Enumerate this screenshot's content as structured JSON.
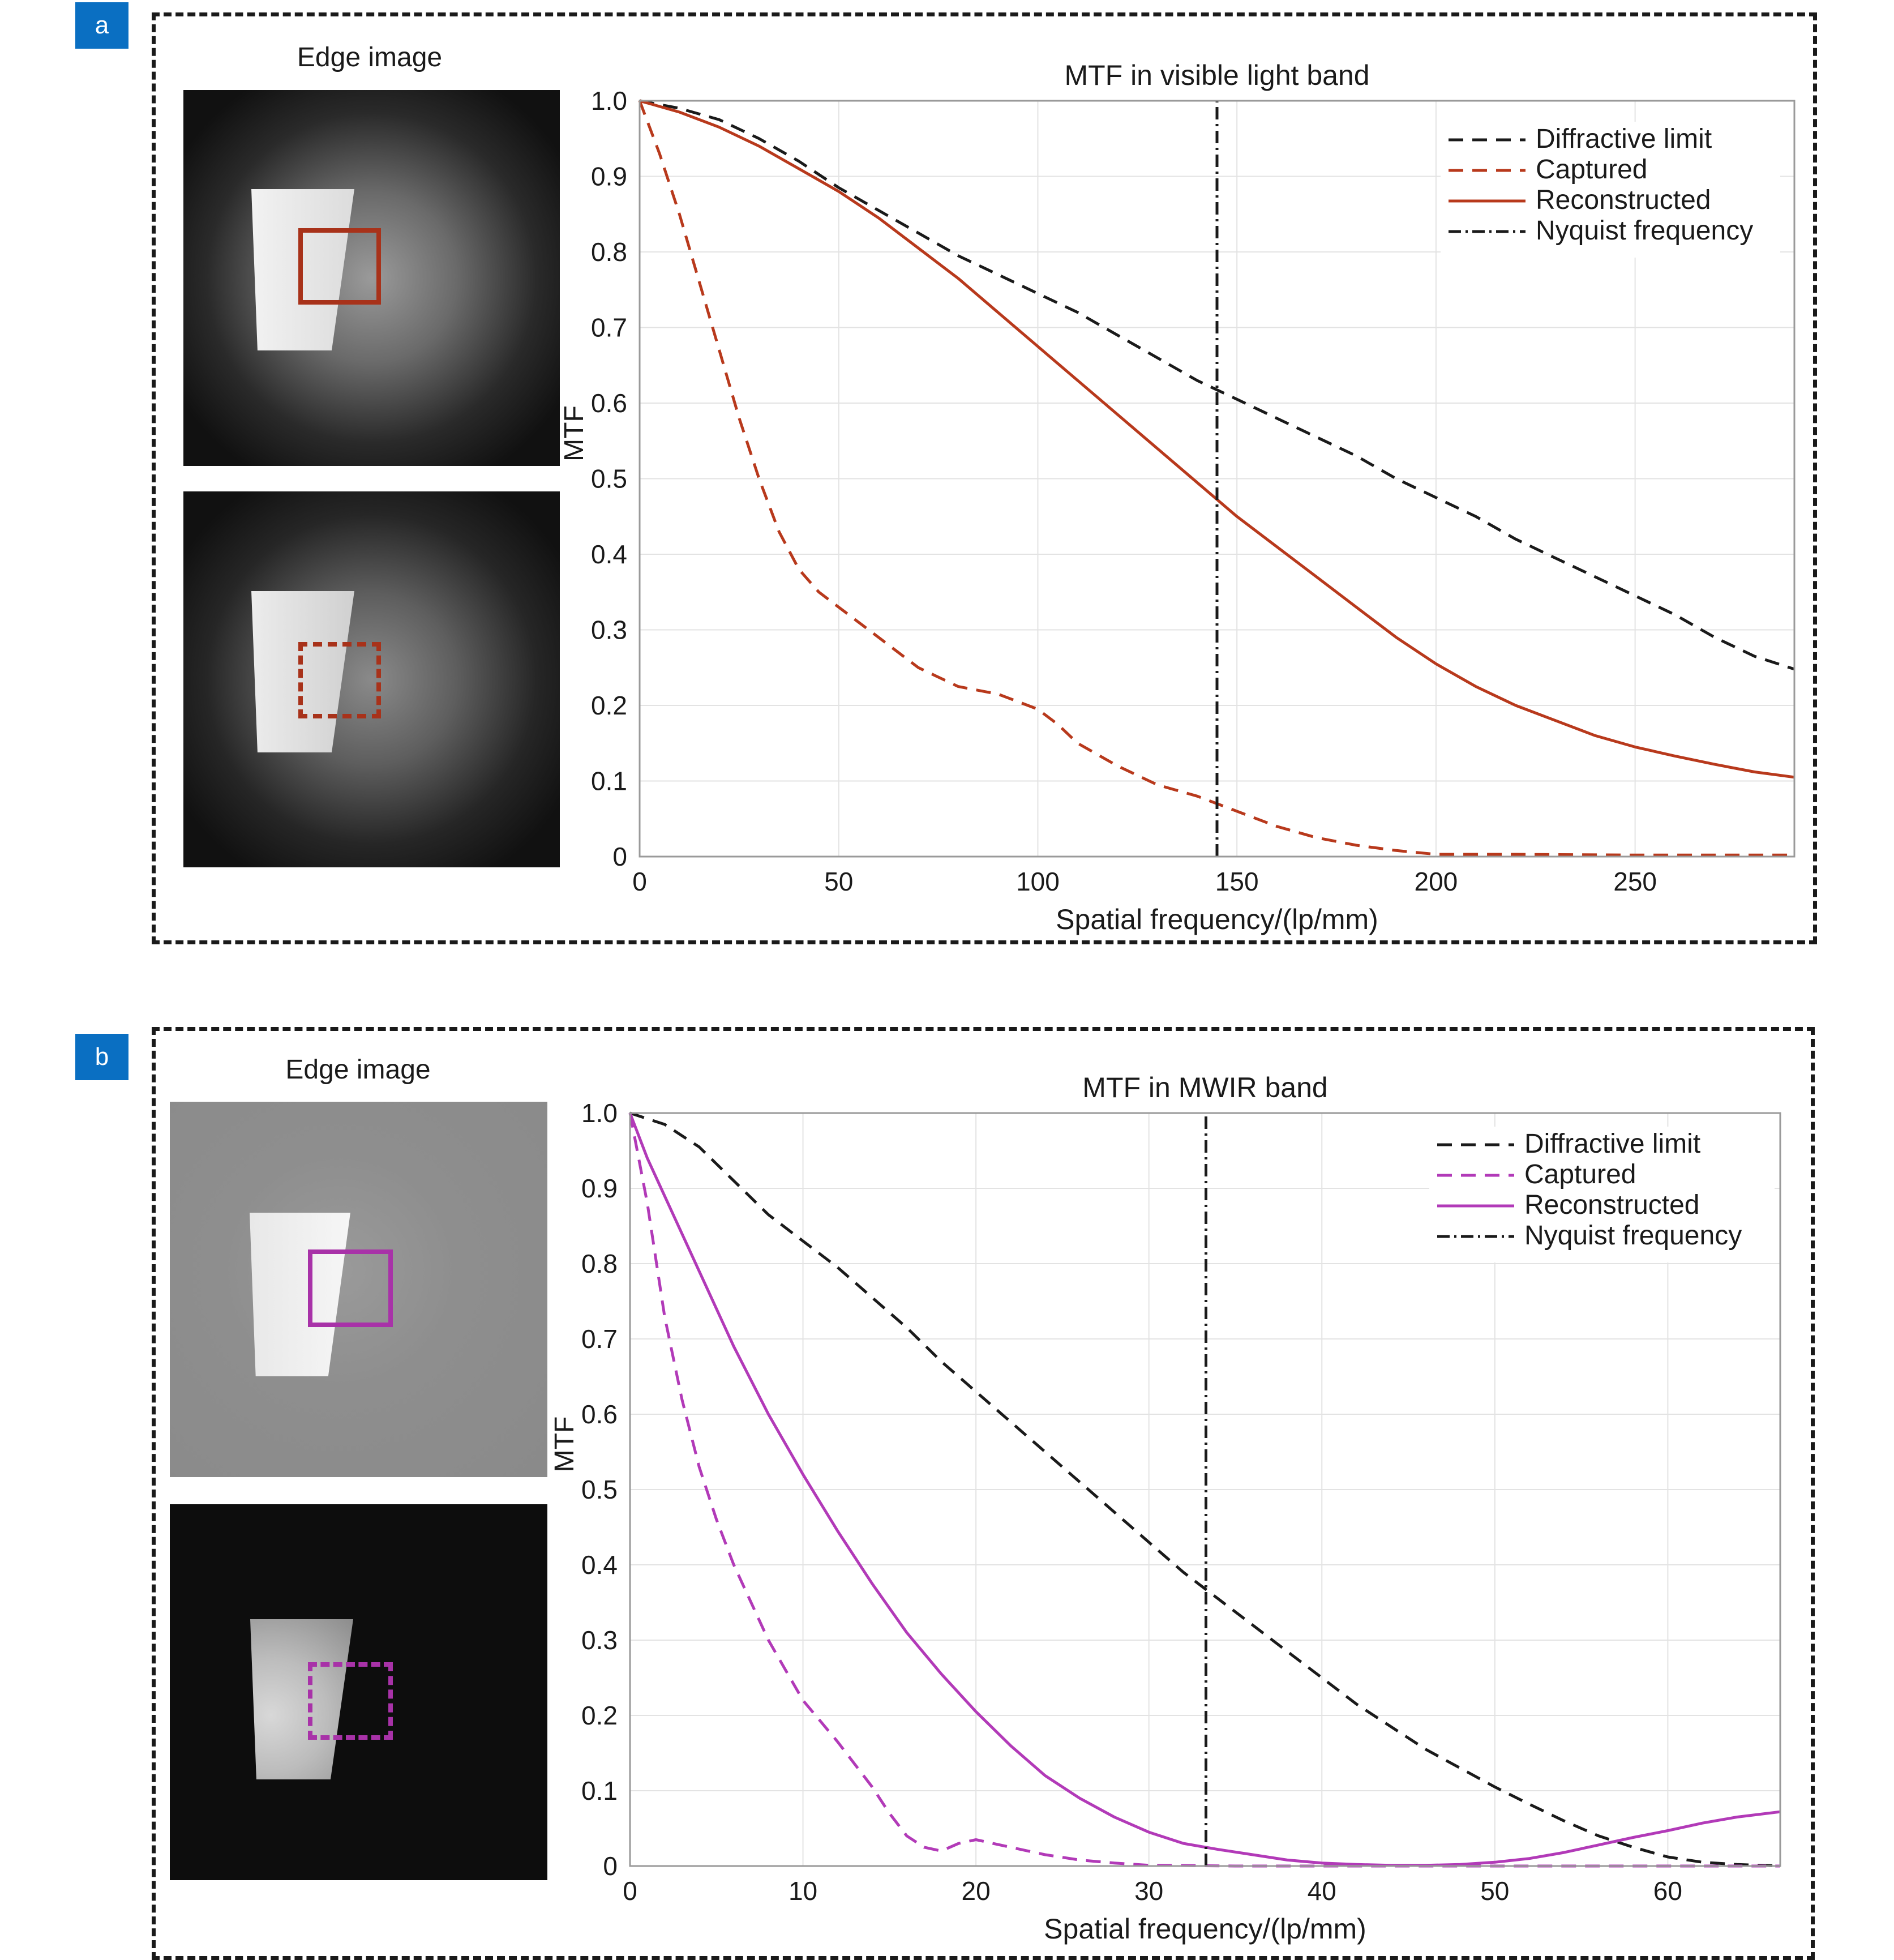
{
  "panels": [
    {
      "tag": "a",
      "edge_title": "Edge image",
      "accent": "#b8391c",
      "photo_top": {
        "background": "#151515",
        "glow": "#8a8a8a",
        "roi_style": "solid"
      },
      "photo_bottom": {
        "background": "#151515",
        "glow": "#8a8a8a",
        "roi_style": "dashed"
      }
    },
    {
      "tag": "b",
      "edge_title": "Edge image",
      "accent": "#b23ab8",
      "photo_top": {
        "background": "#8c8c8c",
        "glow": "#9a9a9a",
        "roi_style": "solid"
      },
      "photo_bottom": {
        "background": "#0d0d0d",
        "glow": "#0d0d0d",
        "roi_style": "dashed"
      }
    }
  ],
  "chart_data": [
    {
      "type": "line",
      "title": "MTF in visible light band",
      "xlabel": "Spatial frequency/(lp/mm)",
      "ylabel": "MTF",
      "xlim": [
        0,
        290
      ],
      "ylim": [
        0,
        1.0
      ],
      "xticks": [
        0,
        50,
        100,
        150,
        200,
        250
      ],
      "xtick_labels": [
        "0",
        "50",
        "100",
        "150",
        "200",
        "250"
      ],
      "yticks": [
        0,
        0.1,
        0.2,
        0.3,
        0.4,
        0.5,
        0.6,
        0.7,
        0.8,
        0.9,
        1.0
      ],
      "ytick_labels": [
        "0",
        "0.1",
        "0.2",
        "0.3",
        "0.4",
        "0.5",
        "0.6",
        "0.7",
        "0.8",
        "0.9",
        "1.0"
      ],
      "grid": true,
      "legend_position": "top-right",
      "nyquist_x": 145,
      "series": [
        {
          "name": "Diffractive limit",
          "color": "#1a1a1a",
          "dash": "dashed",
          "x": [
            0,
            10,
            20,
            30,
            40,
            50,
            60,
            70,
            80,
            90,
            100,
            110,
            120,
            130,
            140,
            150,
            160,
            170,
            180,
            190,
            200,
            210,
            220,
            230,
            240,
            250,
            260,
            270,
            280,
            290
          ],
          "y": [
            1.0,
            0.99,
            0.975,
            0.95,
            0.92,
            0.885,
            0.855,
            0.825,
            0.795,
            0.77,
            0.745,
            0.72,
            0.69,
            0.66,
            0.63,
            0.605,
            0.58,
            0.555,
            0.53,
            0.5,
            0.475,
            0.45,
            0.42,
            0.395,
            0.37,
            0.345,
            0.32,
            0.29,
            0.265,
            0.248
          ]
        },
        {
          "name": "Captured",
          "color": "#b8391c",
          "dash": "dashed",
          "x": [
            0,
            5,
            10,
            15,
            20,
            25,
            30,
            35,
            40,
            45,
            50,
            60,
            70,
            80,
            90,
            95,
            100,
            105,
            110,
            120,
            130,
            140,
            150,
            160,
            170,
            180,
            190,
            200,
            220,
            250,
            290
          ],
          "y": [
            1.0,
            0.93,
            0.85,
            0.76,
            0.67,
            0.58,
            0.5,
            0.43,
            0.38,
            0.35,
            0.33,
            0.29,
            0.25,
            0.225,
            0.215,
            0.205,
            0.195,
            0.175,
            0.15,
            0.12,
            0.095,
            0.08,
            0.06,
            0.04,
            0.025,
            0.015,
            0.008,
            0.003,
            0.003,
            0.002,
            0.002
          ]
        },
        {
          "name": "Reconstructed",
          "color": "#b8391c",
          "dash": "solid",
          "x": [
            0,
            10,
            20,
            30,
            40,
            50,
            60,
            70,
            80,
            90,
            100,
            110,
            120,
            130,
            140,
            150,
            160,
            170,
            180,
            190,
            200,
            210,
            220,
            230,
            240,
            250,
            260,
            270,
            280,
            290
          ],
          "y": [
            1.0,
            0.985,
            0.965,
            0.94,
            0.91,
            0.88,
            0.845,
            0.805,
            0.765,
            0.72,
            0.675,
            0.63,
            0.585,
            0.54,
            0.495,
            0.45,
            0.41,
            0.37,
            0.33,
            0.29,
            0.255,
            0.225,
            0.2,
            0.18,
            0.16,
            0.145,
            0.133,
            0.122,
            0.112,
            0.105
          ]
        },
        {
          "name": "Nyquist frequency",
          "color": "#1a1a1a",
          "dash": "dashdot",
          "x": [
            145,
            145
          ],
          "y": [
            0,
            1.0
          ]
        }
      ]
    },
    {
      "type": "line",
      "title": "MTF in MWIR band",
      "xlabel": "Spatial frequency/(lp/mm)",
      "ylabel": "MTF",
      "xlim": [
        0,
        66.5
      ],
      "ylim": [
        0,
        1.0
      ],
      "xticks": [
        0,
        10,
        20,
        30,
        40,
        50,
        60
      ],
      "xtick_labels": [
        "0",
        "10",
        "20",
        "30",
        "40",
        "50",
        "60"
      ],
      "yticks": [
        0,
        0.1,
        0.2,
        0.3,
        0.4,
        0.5,
        0.6,
        0.7,
        0.8,
        0.9,
        1.0
      ],
      "ytick_labels": [
        "0",
        "0.1",
        "0.2",
        "0.3",
        "0.4",
        "0.5",
        "0.6",
        "0.7",
        "0.8",
        "0.9",
        "1.0"
      ],
      "grid": true,
      "legend_position": "top-right",
      "nyquist_x": 33.3,
      "series": [
        {
          "name": "Diffractive limit",
          "color": "#1a1a1a",
          "dash": "dashed",
          "x": [
            0,
            2,
            4,
            6,
            8,
            10,
            12,
            14,
            16,
            18,
            20,
            22,
            24,
            26,
            28,
            30,
            32,
            34,
            36,
            38,
            40,
            42,
            44,
            46,
            48,
            50,
            52,
            54,
            56,
            58,
            60,
            62,
            64,
            66.5
          ],
          "y": [
            1.0,
            0.985,
            0.955,
            0.91,
            0.865,
            0.83,
            0.795,
            0.755,
            0.715,
            0.67,
            0.63,
            0.59,
            0.55,
            0.51,
            0.47,
            0.43,
            0.39,
            0.355,
            0.32,
            0.285,
            0.25,
            0.215,
            0.185,
            0.155,
            0.13,
            0.105,
            0.082,
            0.06,
            0.04,
            0.025,
            0.012,
            0.005,
            0.002,
            0.0
          ]
        },
        {
          "name": "Captured",
          "color": "#b23ab8",
          "dash": "dashed",
          "x": [
            0,
            1,
            2,
            3,
            4,
            5,
            6,
            7,
            8,
            9,
            10,
            12,
            14,
            15,
            16,
            17,
            18,
            19,
            20,
            22,
            24,
            26,
            28,
            30,
            35,
            40,
            50,
            60,
            66.5
          ],
          "y": [
            1.0,
            0.88,
            0.73,
            0.62,
            0.53,
            0.46,
            0.4,
            0.35,
            0.3,
            0.26,
            0.22,
            0.165,
            0.105,
            0.07,
            0.04,
            0.025,
            0.02,
            0.03,
            0.035,
            0.025,
            0.015,
            0.008,
            0.004,
            0.001,
            0.0,
            0.0,
            0.0,
            0.0,
            0.0
          ]
        },
        {
          "name": "Reconstructed",
          "color": "#b23ab8",
          "dash": "solid",
          "x": [
            0,
            1,
            2,
            4,
            6,
            8,
            10,
            12,
            14,
            16,
            18,
            20,
            22,
            24,
            26,
            28,
            30,
            32,
            34,
            36,
            38,
            40,
            42,
            44,
            46,
            48,
            50,
            52,
            54,
            56,
            58,
            60,
            62,
            64,
            66.5
          ],
          "y": [
            1.0,
            0.94,
            0.89,
            0.79,
            0.69,
            0.6,
            0.52,
            0.445,
            0.375,
            0.31,
            0.255,
            0.205,
            0.16,
            0.12,
            0.09,
            0.065,
            0.045,
            0.03,
            0.022,
            0.015,
            0.008,
            0.004,
            0.002,
            0.001,
            0.001,
            0.002,
            0.005,
            0.01,
            0.018,
            0.028,
            0.038,
            0.047,
            0.057,
            0.065,
            0.072
          ]
        },
        {
          "name": "Nyquist frequency",
          "color": "#1a1a1a",
          "dash": "dashdot",
          "x": [
            33.3,
            33.3
          ],
          "y": [
            0,
            1.0
          ]
        }
      ]
    }
  ]
}
